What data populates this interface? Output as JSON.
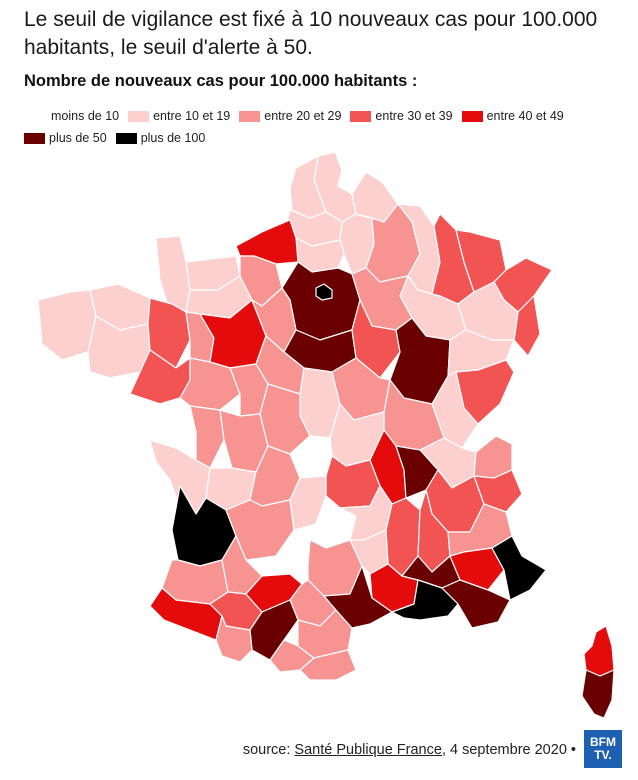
{
  "headline": "Le seuil de vigilance est fixé à 10 nouveaux cas pour 100.000 habitants, le seuil d'alerte à 50.",
  "subtitle": "Nombre de nouveaux cas pour 100.000 habitants :",
  "legend": [
    {
      "label": "moins de 10",
      "color": "#ffffff"
    },
    {
      "label": "entre 10 et 19",
      "color": "#fdd0d0"
    },
    {
      "label": "entre 20 et 29",
      "color": "#f79390"
    },
    {
      "label": "entre 30 et 39",
      "color": "#f25454"
    },
    {
      "label": "entre 40 et 49",
      "color": "#e30b0b"
    },
    {
      "label": "plus de 50",
      "color": "#6a0000"
    },
    {
      "label": "plus de 100",
      "color": "#000000"
    }
  ],
  "source": {
    "prefix": "source: ",
    "link_text": "Santé Publique France",
    "suffix": ", 4 septembre 2020 •"
  },
  "logo": {
    "line1": "BFM",
    "line2": "TV."
  },
  "map": {
    "departments": [
      {
        "id": "nord",
        "class": 1
      },
      {
        "id": "pas-de-calais",
        "class": 1
      },
      {
        "id": "somme",
        "class": 1
      },
      {
        "id": "seine-maritime",
        "class": 4
      },
      {
        "id": "calvados",
        "class": 1
      },
      {
        "id": "manche",
        "class": 1
      },
      {
        "id": "orne",
        "class": 1
      },
      {
        "id": "eure",
        "class": 2
      },
      {
        "id": "oise",
        "class": 1
      },
      {
        "id": "aisne",
        "class": 1
      },
      {
        "id": "ardennes",
        "class": 1
      },
      {
        "id": "marne",
        "class": 2
      },
      {
        "id": "meuse",
        "class": 1
      },
      {
        "id": "moselle",
        "class": 3
      },
      {
        "id": "bas-rhin",
        "class": 3
      },
      {
        "id": "haut-rhin",
        "class": 3
      },
      {
        "id": "vosges",
        "class": 1
      },
      {
        "id": "meurthe-et-moselle",
        "class": 3
      },
      {
        "id": "haute-marne",
        "class": 1
      },
      {
        "id": "aube",
        "class": 2
      },
      {
        "id": "ile-de-france",
        "class": 5
      },
      {
        "id": "paris",
        "class": 6
      },
      {
        "id": "finistere",
        "class": 1
      },
      {
        "id": "cotes-d-armor",
        "class": 1
      },
      {
        "id": "morbihan",
        "class": 1
      },
      {
        "id": "ille-et-vilaine",
        "class": 3
      },
      {
        "id": "mayenne",
        "class": 2
      },
      {
        "id": "sarthe",
        "class": 4
      },
      {
        "id": "eure-et-loir",
        "class": 2
      },
      {
        "id": "loiret",
        "class": 5
      },
      {
        "id": "yonne",
        "class": 3
      },
      {
        "id": "cote-d-or",
        "class": 5
      },
      {
        "id": "haute-saone",
        "class": 1
      },
      {
        "id": "doubs",
        "class": 3
      },
      {
        "id": "jura",
        "class": 1
      },
      {
        "id": "loire-atlantique",
        "class": 3
      },
      {
        "id": "maine-et-loire",
        "class": 2
      },
      {
        "id": "indre-et-loire",
        "class": 2
      },
      {
        "id": "loir-et-cher",
        "class": 2
      },
      {
        "id": "cher",
        "class": 1
      },
      {
        "id": "nievre",
        "class": 2
      },
      {
        "id": "saone-et-loire",
        "class": 2
      },
      {
        "id": "vendee",
        "class": 0
      },
      {
        "id": "deux-sevres",
        "class": 2
      },
      {
        "id": "vienne",
        "class": 2
      },
      {
        "id": "indre",
        "class": 2
      },
      {
        "id": "allier",
        "class": 1
      },
      {
        "id": "ain",
        "class": 1
      },
      {
        "id": "haute-savoie",
        "class": 2
      },
      {
        "id": "charente-maritime",
        "class": 1
      },
      {
        "id": "charente",
        "class": 1
      },
      {
        "id": "haute-vienne",
        "class": 2
      },
      {
        "id": "creuse",
        "class": 0
      },
      {
        "id": "puy-de-dome",
        "class": 3
      },
      {
        "id": "loire",
        "class": 4
      },
      {
        "id": "rhone",
        "class": 5
      },
      {
        "id": "isere",
        "class": 3
      },
      {
        "id": "savoie",
        "class": 3
      },
      {
        "id": "gironde",
        "class": 6
      },
      {
        "id": "dordogne",
        "class": 2
      },
      {
        "id": "correze",
        "class": 1
      },
      {
        "id": "cantal",
        "class": 0
      },
      {
        "id": "haute-loire",
        "class": 1
      },
      {
        "id": "ardeche",
        "class": 3
      },
      {
        "id": "drome",
        "class": 3
      },
      {
        "id": "hautes-alpes",
        "class": 2
      },
      {
        "id": "landes",
        "class": 2
      },
      {
        "id": "lot-et-garonne",
        "class": 2
      },
      {
        "id": "lot",
        "class": 0
      },
      {
        "id": "aveyron",
        "class": 2
      },
      {
        "id": "lozere",
        "class": 1
      },
      {
        "id": "gard",
        "class": 4
      },
      {
        "id": "vaucluse",
        "class": 5
      },
      {
        "id": "alpes-de-haute-provence",
        "class": 4
      },
      {
        "id": "alpes-maritimes",
        "class": 6
      },
      {
        "id": "pyrenees-atlantiques",
        "class": 4
      },
      {
        "id": "gers",
        "class": 3
      },
      {
        "id": "tarn-et-garonne",
        "class": 4
      },
      {
        "id": "tarn",
        "class": 2
      },
      {
        "id": "haute-garonne",
        "class": 5
      },
      {
        "id": "hautes-pyrenees",
        "class": 2
      },
      {
        "id": "ariege",
        "class": 2
      },
      {
        "id": "aude",
        "class": 2
      },
      {
        "id": "herault",
        "class": 5
      },
      {
        "id": "pyrenees-orientales",
        "class": 2
      },
      {
        "id": "bouches-du-rhone",
        "class": 6
      },
      {
        "id": "var",
        "class": 5
      },
      {
        "id": "haute-corse",
        "class": 4
      },
      {
        "id": "corse-du-sud",
        "class": 5
      }
    ]
  }
}
